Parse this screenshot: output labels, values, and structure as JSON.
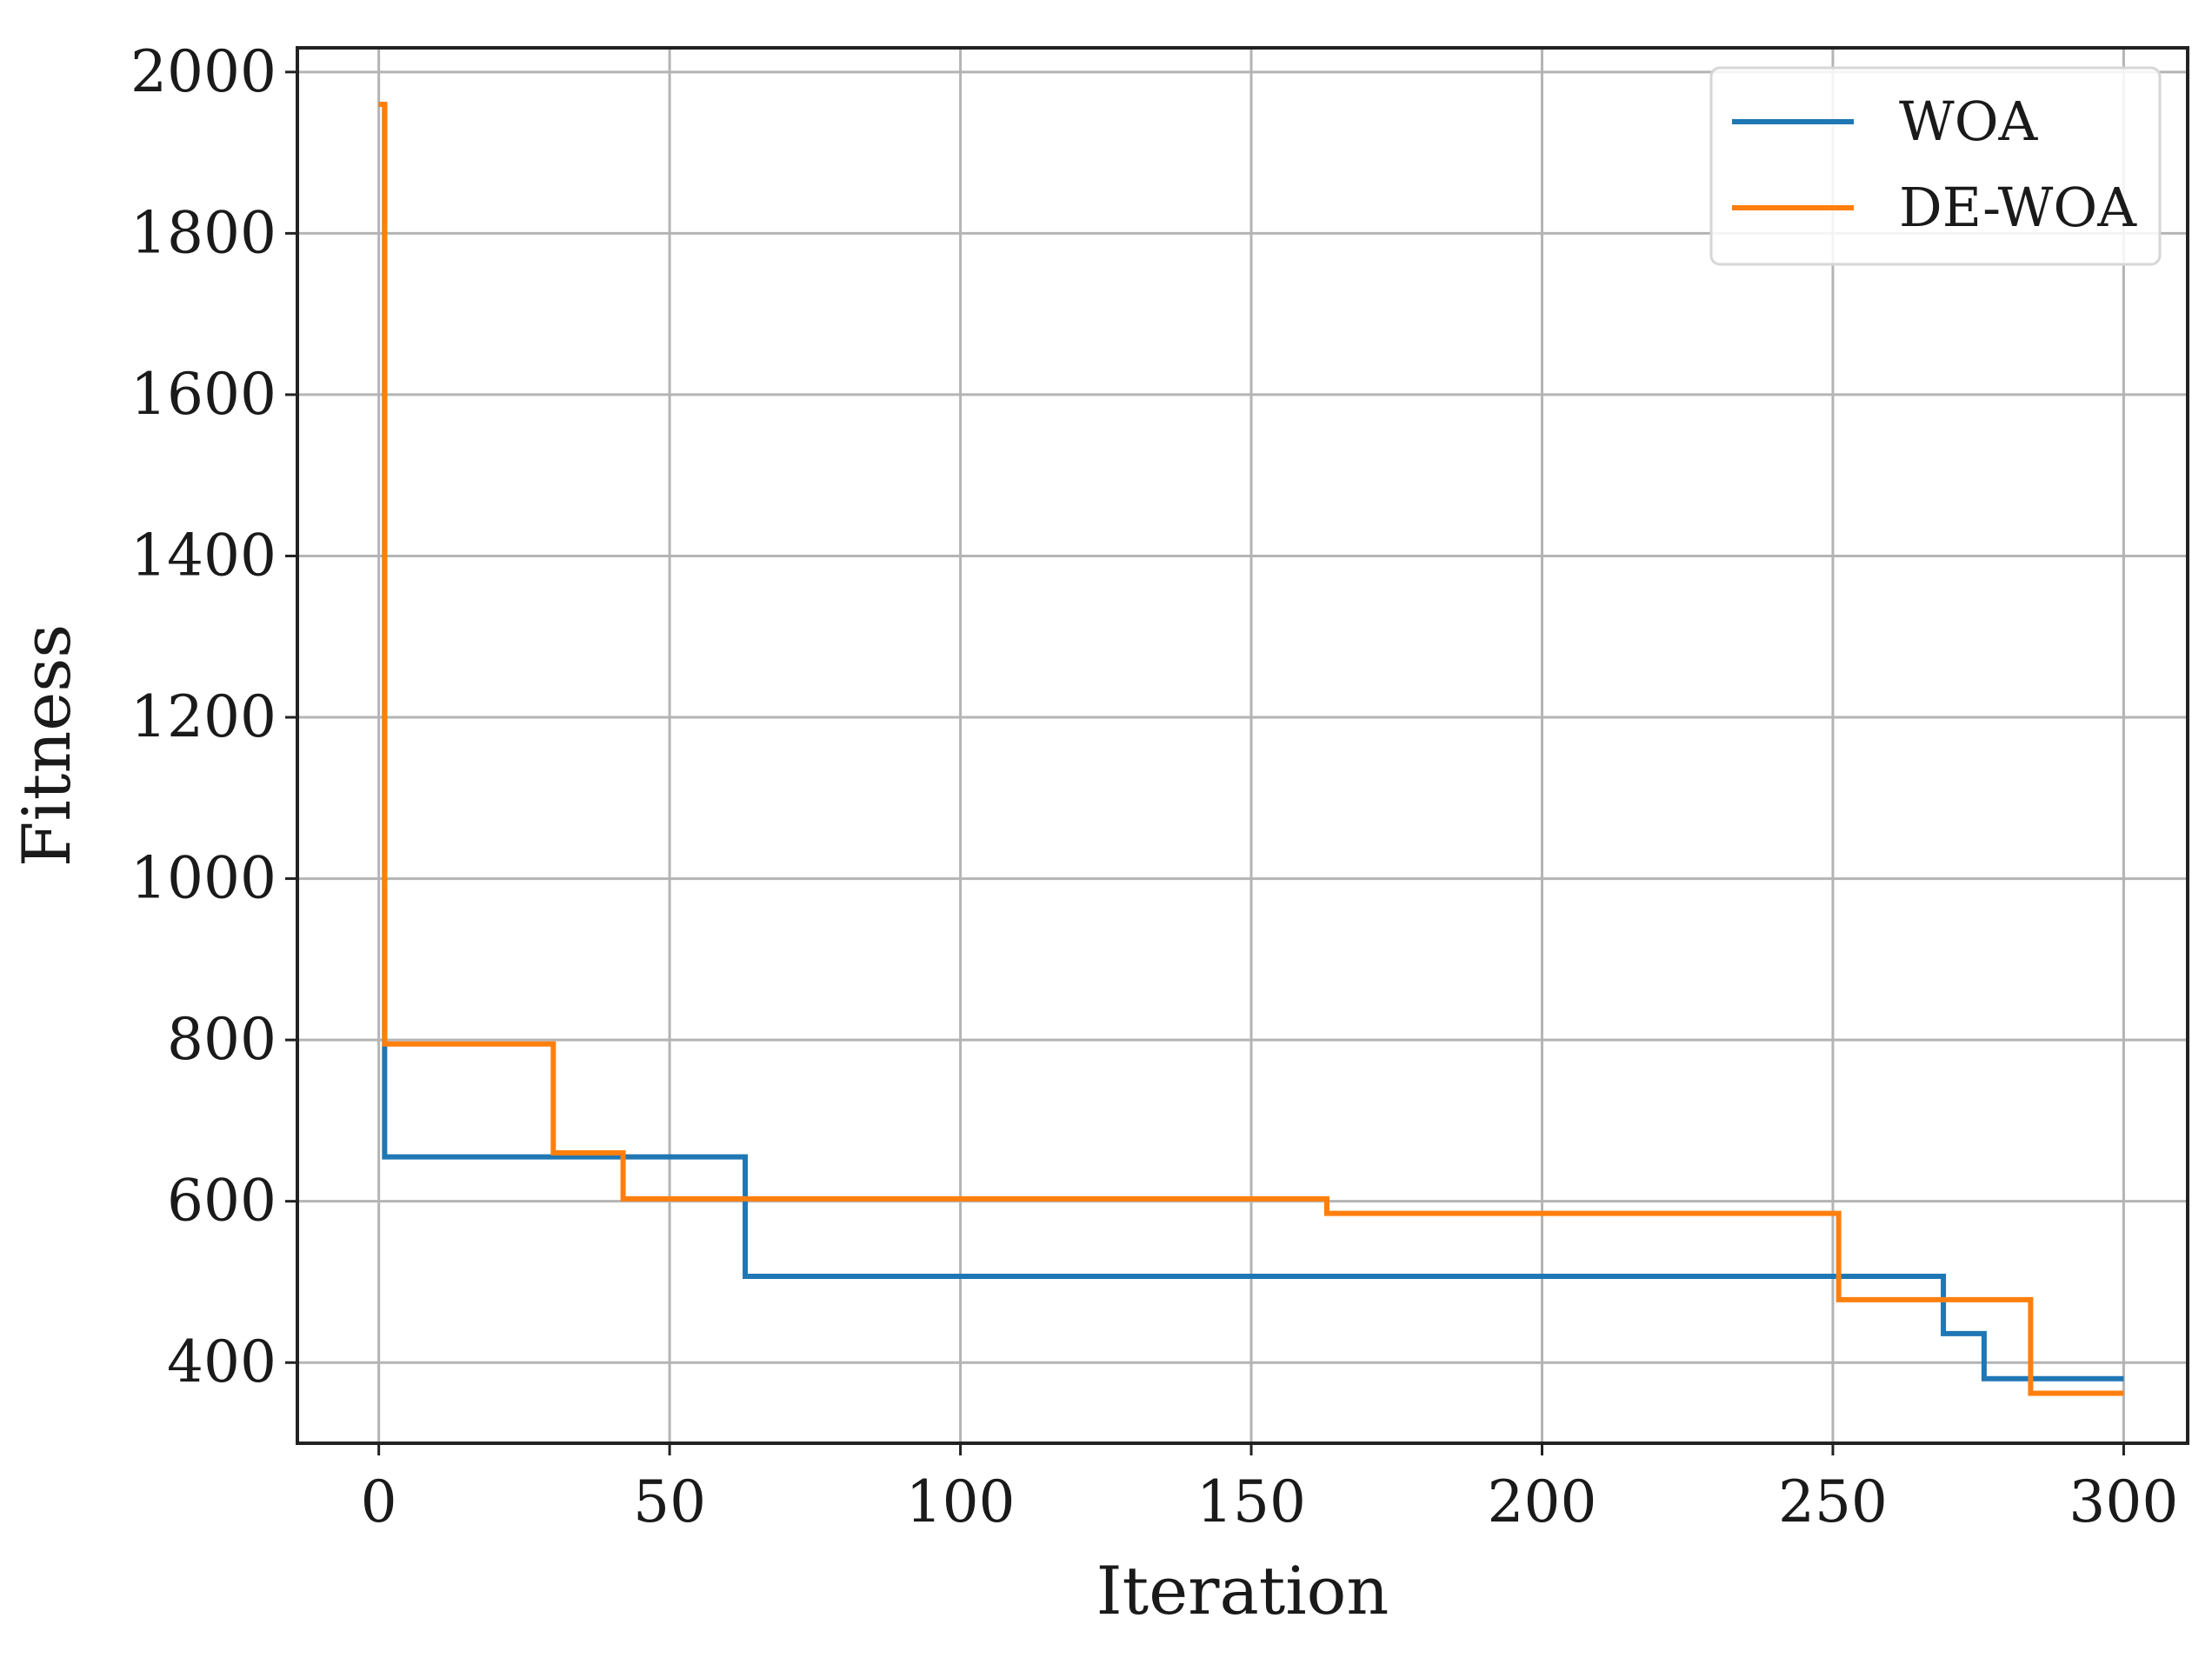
{
  "chart_data": {
    "type": "line",
    "title": "",
    "xlabel": "Iteration",
    "ylabel": "Fitness",
    "xlim": [
      -14,
      311
    ],
    "ylim": [
      300,
      2030
    ],
    "xticks": [
      0,
      50,
      100,
      150,
      200,
      250,
      300
    ],
    "yticks": [
      400,
      600,
      800,
      1000,
      1200,
      1400,
      1600,
      1800,
      2000
    ],
    "grid": true,
    "legend_position": "top-right",
    "series": [
      {
        "name": "WOA",
        "color": "#1f77b4",
        "step": "post",
        "x": [
          0,
          1,
          62,
          63,
          268,
          269,
          275,
          276,
          300
        ],
        "y": [
          1960,
          655,
          655,
          507,
          507,
          436,
          436,
          380,
          380
        ]
      },
      {
        "name": "DE-WOA",
        "color": "#ff7f0e",
        "step": "post",
        "x": [
          0,
          1,
          30,
          41,
          42,
          162,
          163,
          250,
          251,
          283,
          284,
          300
        ],
        "y": [
          1960,
          795,
          660,
          660,
          603,
          603,
          585,
          585,
          478,
          478,
          362,
          362
        ]
      }
    ]
  }
}
